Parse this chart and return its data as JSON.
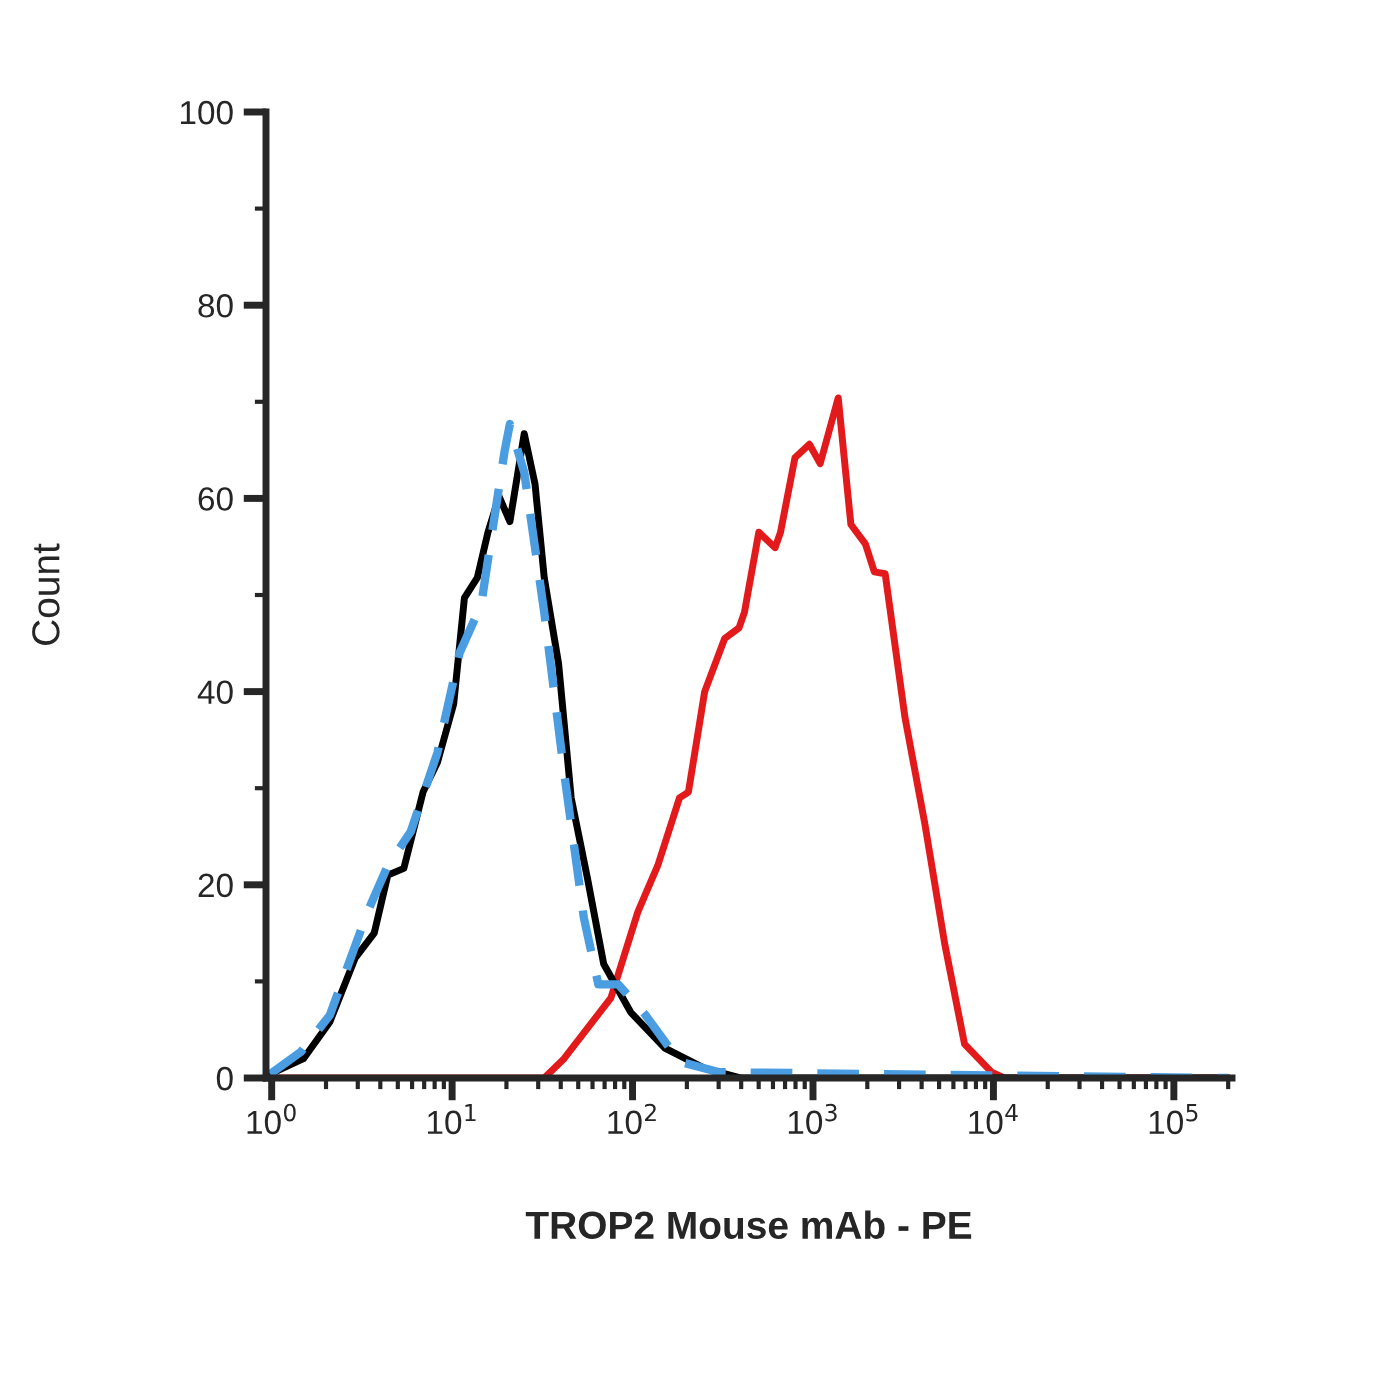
{
  "chart_data": {
    "type": "line",
    "xlabel": "TROP2 Mouse mAb - PE",
    "ylabel": "Count",
    "log": "x",
    "grid": false,
    "legend": false,
    "marker": "none",
    "xlim": [
      0.93,
      210000
    ],
    "ylim": [
      0,
      100
    ],
    "xticks": [
      {
        "value": 1,
        "label": "10$^{0}$"
      },
      {
        "value": 10,
        "label": "10$^{1}$"
      },
      {
        "value": 100,
        "label": "10$^{2}$"
      },
      {
        "value": 1000,
        "label": "10$^{3}$"
      },
      {
        "value": 10000,
        "label": "10$^{4}$"
      },
      {
        "value": 100000,
        "label": "10$^{5}$"
      }
    ],
    "yticks": [
      0,
      20,
      40,
      60,
      80,
      100
    ],
    "series": [
      {
        "color": "#e31a1c",
        "line_style": "solid",
        "x": [
          0.98,
          10.2,
          32.4,
          41.7,
          75.9,
          107,
          138,
          182,
          204,
          251,
          324,
          389,
          417,
          501,
          617,
          661,
          794,
          955,
          1096,
          1380,
          1622,
          1950,
          2188,
          2512,
          3236,
          4169,
          5370,
          6918,
          9772,
          11480,
          200000
        ],
        "values": [
          0,
          0,
          0,
          2,
          8.3,
          17.2,
          22,
          29,
          29.6,
          40,
          45.5,
          46.6,
          48.2,
          56.5,
          54.9,
          56.5,
          64.2,
          65.6,
          63.6,
          70.4,
          57.3,
          55.3,
          52.4,
          52.2,
          37.3,
          26.3,
          13.9,
          3.5,
          0.6,
          0,
          0
        ]
      },
      {
        "color": "#000000",
        "line_style": "solid",
        "x": [
          0.98,
          1.5,
          2.1,
          2.9,
          3.7,
          4.4,
          5.4,
          6.9,
          8.3,
          10.2,
          11.7,
          13.8,
          15.8,
          18.2,
          20.9,
          25.1,
          28.8,
          32.4,
          38.9,
          45.7,
          56.2,
          69.2,
          97.7,
          151,
          251,
          400,
          200000
        ],
        "values": [
          0.4,
          2,
          5.8,
          12.4,
          15,
          21,
          21.7,
          29.6,
          32.7,
          38.7,
          49.7,
          51.8,
          56.5,
          60.2,
          57.6,
          66.7,
          61.5,
          51.8,
          42.9,
          29,
          20.7,
          11.8,
          6.8,
          3.1,
          1,
          0,
          0
        ]
      },
      {
        "color": "#4a9de0",
        "line_style": "dashed",
        "x": [
          0.98,
          1.45,
          2.1,
          3.4,
          4.4,
          5.9,
          8.3,
          11,
          14.5,
          16.2,
          19.5,
          20.9,
          25.1,
          32.4,
          41.7,
          53.7,
          64.6,
          83.2,
          117,
          182,
          302,
          200000
        ],
        "values": [
          0.4,
          2.7,
          6.5,
          17.2,
          22,
          25.5,
          33.7,
          44,
          49,
          55,
          64.8,
          67.7,
          62.7,
          48.2,
          31.7,
          16.6,
          9.7,
          9.7,
          6.6,
          1.7,
          0.6,
          0
        ]
      }
    ]
  }
}
